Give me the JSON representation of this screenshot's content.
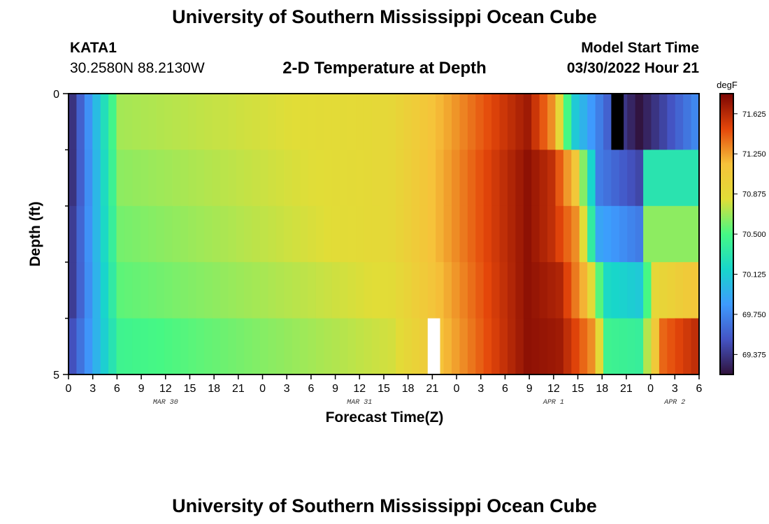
{
  "header": {
    "title": "University of Southern Mississippi Ocean Cube",
    "station": "KATA1",
    "coords": "30.2580N  88.2130W",
    "subtitle": "2-D Temperature at Depth",
    "model_start_label": "Model Start Time",
    "model_start_value": "03/30/2022 Hour 21",
    "footer_title": "University of Southern Mississippi Ocean Cube"
  },
  "chart_data": {
    "type": "heatmap",
    "title": "2-D Temperature at Depth",
    "xlabel": "Forecast Time(Z)",
    "ylabel": "Depth (ft)",
    "x_tick_labels": [
      "0",
      "3",
      "6",
      "9",
      "12",
      "15",
      "18",
      "21",
      "0",
      "3",
      "6",
      "9",
      "12",
      "15",
      "18",
      "21",
      "0",
      "3",
      "6",
      "9",
      "12",
      "15",
      "18",
      "21",
      "0",
      "3",
      "6"
    ],
    "date_labels": [
      {
        "label": "MAR 30",
        "tick_index": 4
      },
      {
        "label": "MAR 31",
        "tick_index": 12
      },
      {
        "label": "APR 1",
        "tick_index": 20
      },
      {
        "label": "APR 2",
        "tick_index": 25
      }
    ],
    "y_range": [
      0,
      5
    ],
    "y_tick_labels": [
      "0",
      "5"
    ],
    "depth_levels": 5,
    "time_steps": 79,
    "colorbar": {
      "unit": "degF",
      "min": 69.188,
      "max": 71.813,
      "ticks": [
        "71.625",
        "71.250",
        "70.875",
        "70.500",
        "70.125",
        "69.750",
        "69.375"
      ]
    },
    "series": [
      {
        "depth_row": 0,
        "knots": [
          [
            0,
            69.35
          ],
          [
            6,
            70.7
          ],
          [
            40,
            70.9
          ],
          [
            57,
            71.7
          ],
          [
            60,
            71.3
          ],
          [
            63,
            70.1
          ],
          [
            68,
            69.45
          ],
          [
            71,
            69.2
          ],
          [
            78,
            69.75
          ]
        ]
      },
      {
        "depth_row": 1,
        "knots": [
          [
            0,
            69.35
          ],
          [
            6,
            70.65
          ],
          [
            40,
            70.9
          ],
          [
            57,
            71.75
          ],
          [
            60,
            71.6
          ],
          [
            63,
            71.1
          ],
          [
            66,
            69.7
          ],
          [
            71,
            69.45
          ],
          [
            72,
            70.3
          ],
          [
            78,
            70.3
          ]
        ]
      },
      {
        "depth_row": 2,
        "knots": [
          [
            0,
            69.4
          ],
          [
            6,
            70.6
          ],
          [
            40,
            70.9
          ],
          [
            57,
            71.75
          ],
          [
            60,
            71.6
          ],
          [
            63,
            71.3
          ],
          [
            66,
            69.9
          ],
          [
            71,
            69.7
          ],
          [
            72,
            70.65
          ],
          [
            78,
            70.65
          ]
        ]
      },
      {
        "depth_row": 3,
        "knots": [
          [
            0,
            69.4
          ],
          [
            6,
            70.55
          ],
          [
            40,
            70.85
          ],
          [
            57,
            71.75
          ],
          [
            61,
            71.65
          ],
          [
            64,
            71.2
          ],
          [
            67,
            70.2
          ],
          [
            71,
            70.1
          ],
          [
            73,
            70.9
          ],
          [
            78,
            71.1
          ]
        ]
      },
      {
        "depth_row": 4,
        "knots": [
          [
            0,
            69.5
          ],
          [
            6,
            70.45
          ],
          [
            40,
            70.8
          ],
          [
            57,
            71.75
          ],
          [
            61,
            71.7
          ],
          [
            65,
            71.3
          ],
          [
            67,
            70.45
          ],
          [
            71,
            70.4
          ],
          [
            74,
            71.4
          ],
          [
            78,
            71.6
          ]
        ]
      }
    ],
    "missing_cells": [
      {
        "depth_row": 0,
        "time_index": 68,
        "fill": "#000000"
      },
      {
        "depth_row": 4,
        "time_index": 45,
        "fill": "#ffffff"
      }
    ]
  }
}
